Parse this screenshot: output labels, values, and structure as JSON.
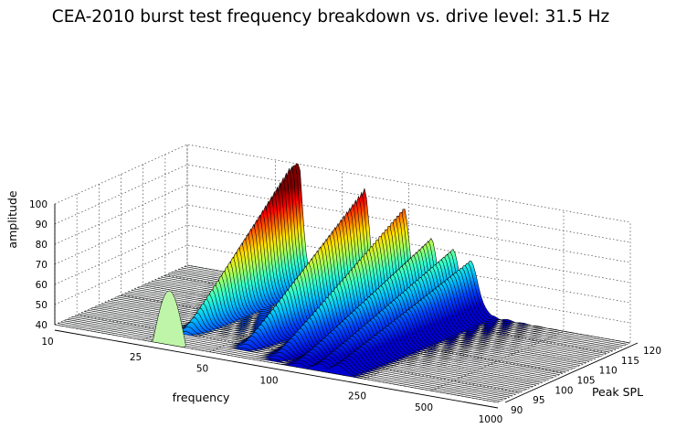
{
  "chart_data": {
    "type": "surface3d",
    "title": "CEA-2010 burst test frequency breakdown vs. drive level: 31.5 Hz",
    "xlabel": "frequency",
    "ylabel": "Peak SPL",
    "zlabel": "amplitude",
    "x_ticks": [
      "10",
      "25",
      "50",
      "100",
      "250",
      "500",
      "1000"
    ],
    "x_tick_values": [
      10,
      25,
      50,
      100,
      250,
      500,
      1000
    ],
    "x_scale": "log",
    "y_ticks": [
      "90",
      "95",
      "100",
      "105",
      "110",
      "115",
      "120"
    ],
    "y_tick_values": [
      90,
      95,
      100,
      105,
      110,
      115,
      120
    ],
    "z_ticks": [
      "40",
      "50",
      "60",
      "70",
      "80",
      "90",
      "100"
    ],
    "z_tick_values": [
      40,
      50,
      60,
      70,
      80,
      90,
      100
    ],
    "xlim": [
      10,
      1000
    ],
    "ylim": [
      90,
      120
    ],
    "zlim": [
      40,
      100
    ],
    "colormap": "jet",
    "grid": true,
    "peaks": [
      {
        "frequency": 31.5,
        "peak_spl_max": 118,
        "amplitude_max": 100
      },
      {
        "frequency": 63,
        "peak_spl_max": 116,
        "amplitude_max": 86
      },
      {
        "frequency": 95,
        "peak_spl_max": 114,
        "amplitude_max": 78
      },
      {
        "frequency": 126,
        "peak_spl_max": 112,
        "amplitude_max": 66
      },
      {
        "frequency": 158,
        "peak_spl_max": 110,
        "amplitude_max": 62
      },
      {
        "frequency": 190,
        "peak_spl_max": 108,
        "amplitude_max": 58
      }
    ]
  }
}
